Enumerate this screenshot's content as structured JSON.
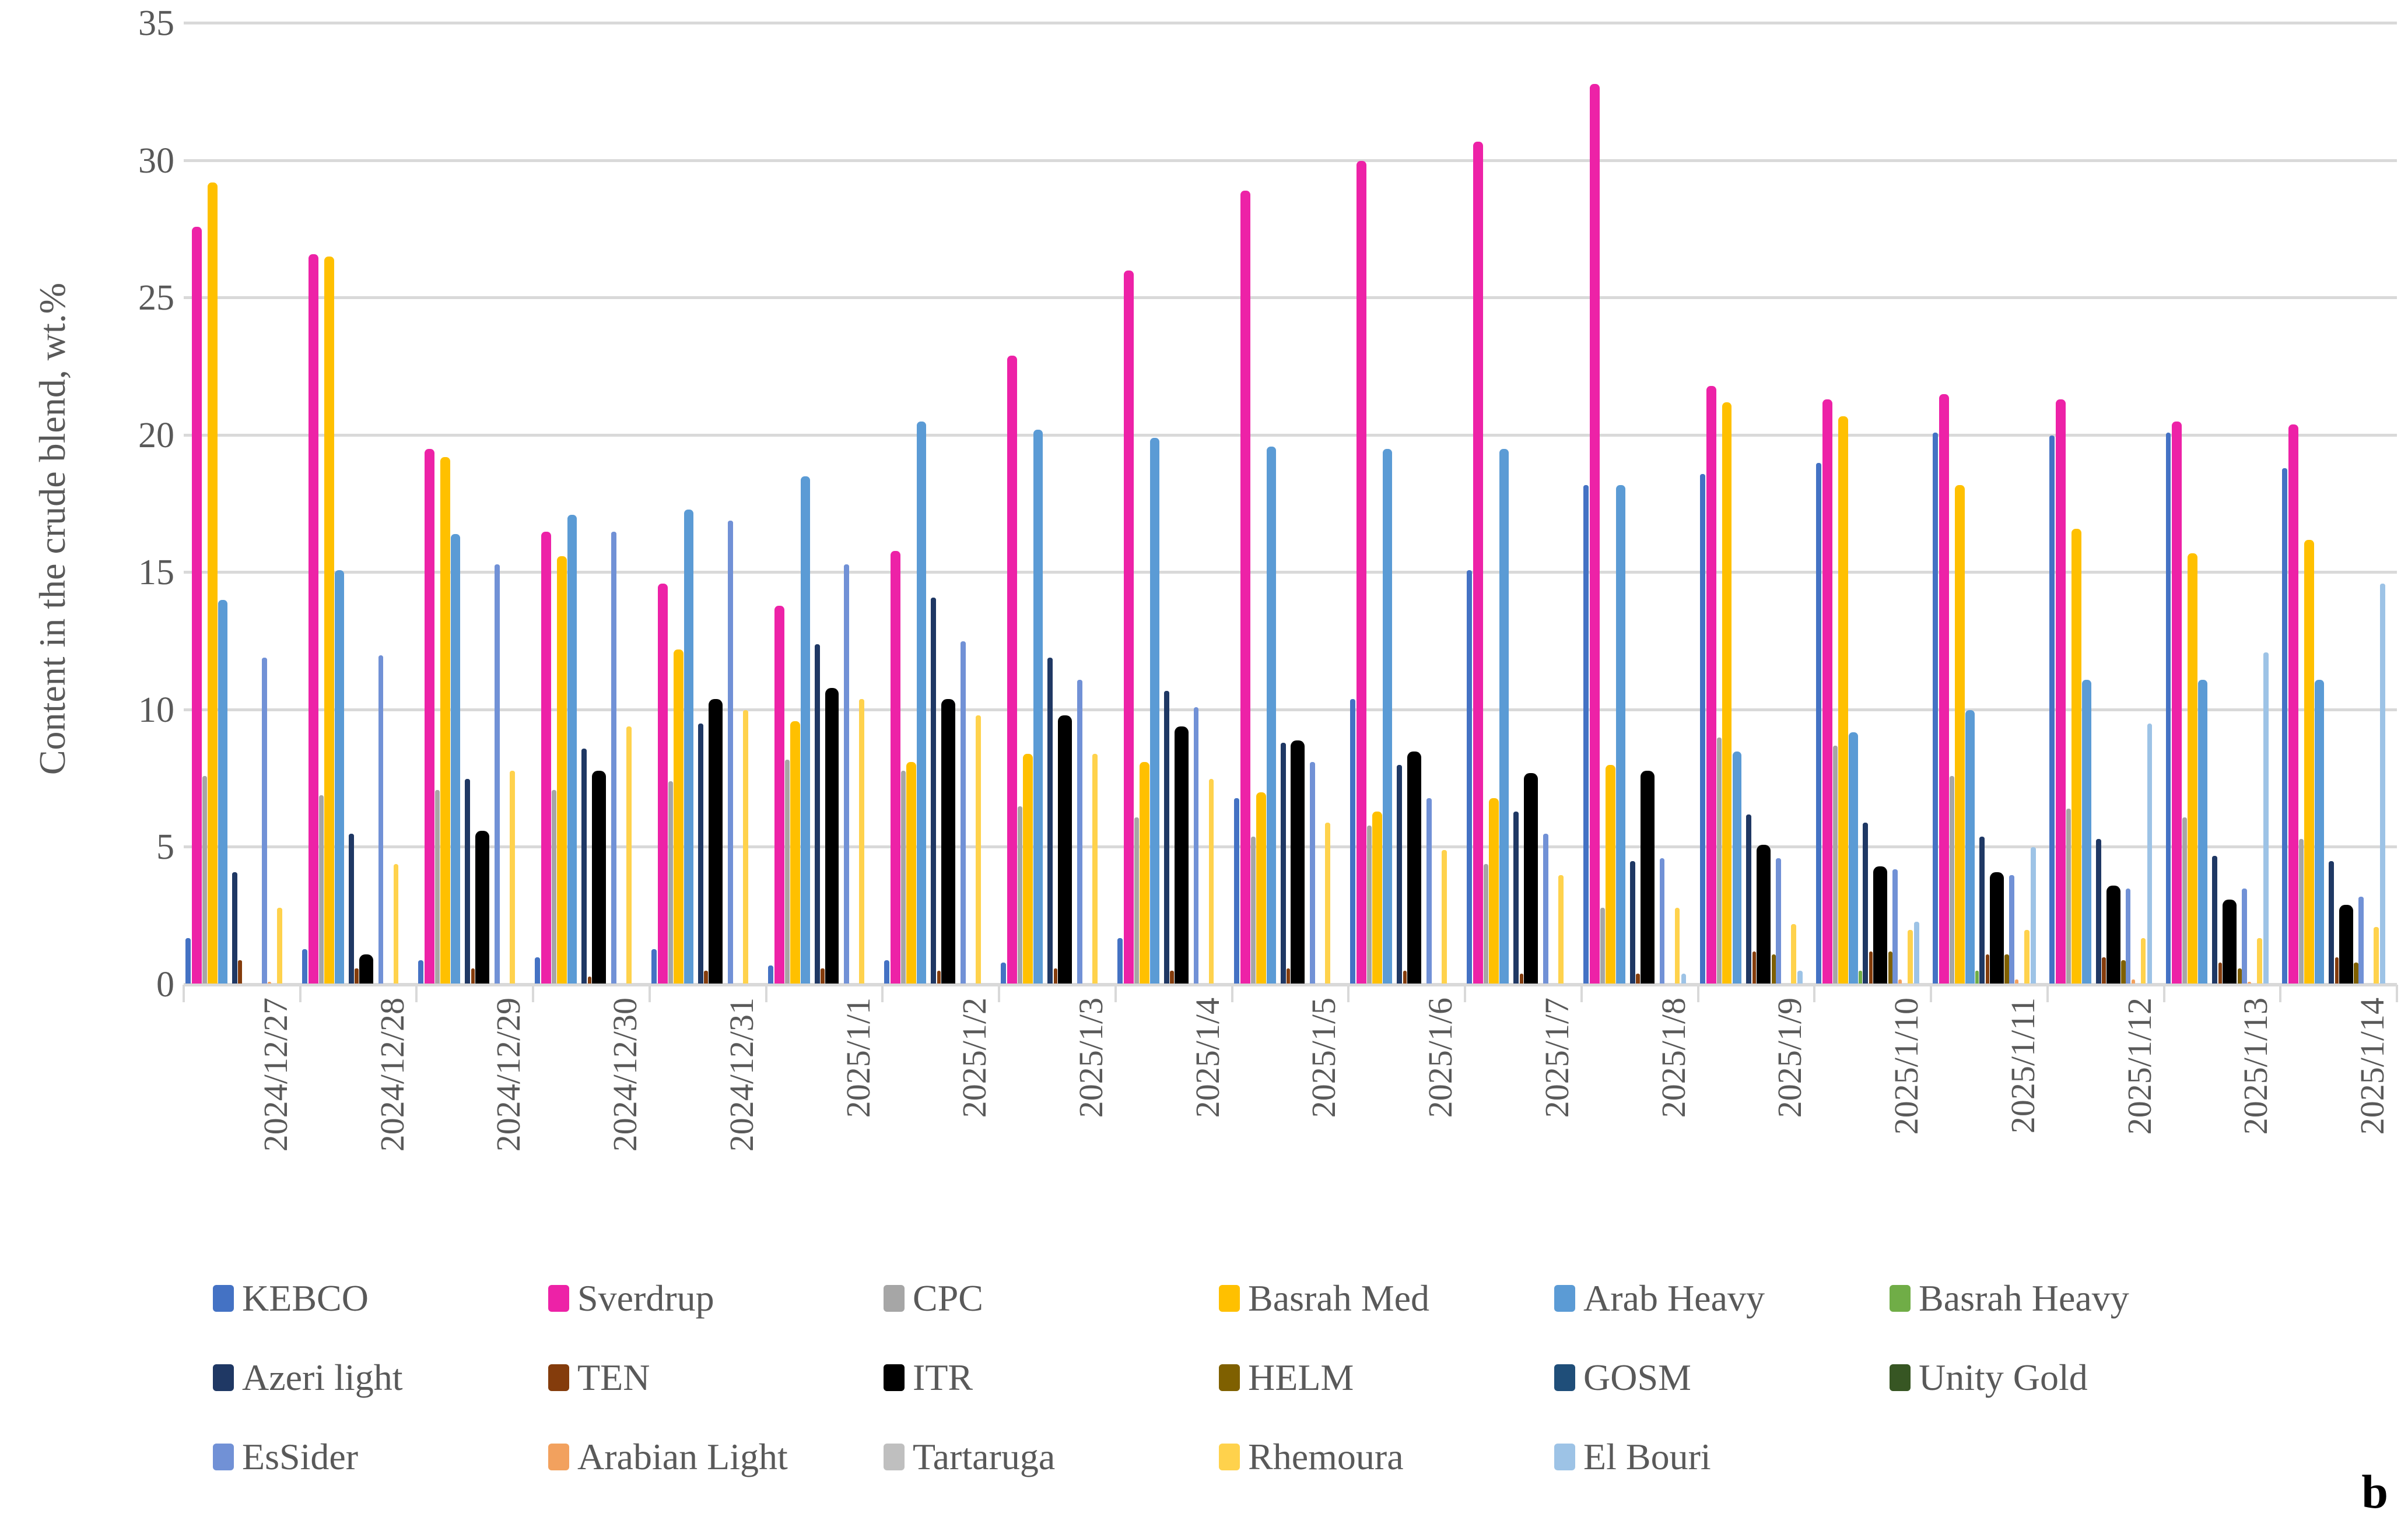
{
  "chart_data": {
    "type": "bar",
    "title": "",
    "xlabel": "",
    "ylabel": "Content in the crude blend, wt.%",
    "ylim": [
      0,
      35
    ],
    "yticks": [
      0,
      5,
      10,
      15,
      20,
      25,
      30,
      35
    ],
    "grid": "horizontal",
    "legend_position": "bottom",
    "annotation": "b",
    "categories": [
      "2024/12/27",
      "2024/12/28",
      "2024/12/29",
      "2024/12/30",
      "2024/12/31",
      "2025/1/1",
      "2025/1/2",
      "2025/1/3",
      "2025/1/4",
      "2025/1/5",
      "2025/1/6",
      "2025/1/7",
      "2025/1/8",
      "2025/1/9",
      "2025/1/10",
      "2025/1/11",
      "2025/1/12",
      "2025/1/13",
      "2025/1/14"
    ],
    "series": [
      {
        "name": "KEBCO",
        "color": "#4472C4",
        "values": [
          1.7,
          1.3,
          0.9,
          1.0,
          1.3,
          0.7,
          0.9,
          0.8,
          1.7,
          6.8,
          10.4,
          15.1,
          18.2,
          18.6,
          19.0,
          20.1,
          20.0,
          20.1,
          18.8
        ]
      },
      {
        "name": "Sverdrup",
        "color": "#ED22A7",
        "values": [
          27.6,
          26.6,
          19.5,
          16.5,
          14.6,
          13.8,
          15.8,
          22.9,
          26.0,
          28.9,
          30.0,
          30.7,
          32.8,
          21.8,
          21.3,
          21.5,
          21.3,
          20.5,
          20.4
        ]
      },
      {
        "name": "CPC",
        "color": "#A6A6A6",
        "values": [
          7.6,
          6.9,
          7.1,
          7.1,
          7.4,
          8.2,
          7.8,
          6.5,
          6.1,
          5.4,
          5.8,
          4.4,
          2.8,
          9.0,
          8.7,
          7.6,
          6.4,
          6.1,
          5.3
        ]
      },
      {
        "name": "Basrah Med",
        "color": "#FFC000",
        "values": [
          29.2,
          26.5,
          19.2,
          15.6,
          12.2,
          9.6,
          8.1,
          8.4,
          8.1,
          7.0,
          6.3,
          6.8,
          8.0,
          21.2,
          20.7,
          18.2,
          16.6,
          15.7,
          16.2
        ]
      },
      {
        "name": "Arab Heavy",
        "color": "#5B9BD5",
        "values": [
          14.0,
          15.1,
          16.4,
          17.1,
          17.3,
          18.5,
          20.5,
          20.2,
          19.9,
          19.6,
          19.5,
          19.5,
          18.2,
          8.5,
          9.2,
          10.0,
          11.1,
          11.1,
          11.1
        ]
      },
      {
        "name": "Basrah Heavy",
        "color": "#70AD47",
        "values": [
          0,
          0,
          0,
          0,
          0,
          0,
          0,
          0,
          0,
          0,
          0,
          0,
          0,
          0,
          0.5,
          0.5,
          0,
          0,
          0
        ]
      },
      {
        "name": "Azeri light",
        "color": "#1F3864",
        "values": [
          4.1,
          5.5,
          7.5,
          8.6,
          9.5,
          12.4,
          14.1,
          11.9,
          10.7,
          8.8,
          8.0,
          6.3,
          4.5,
          6.2,
          5.9,
          5.4,
          5.3,
          4.7,
          4.5
        ]
      },
      {
        "name": "TEN",
        "color": "#843C0C",
        "values": [
          0.9,
          0.6,
          0.6,
          0.3,
          0.5,
          0.6,
          0.5,
          0.6,
          0.5,
          0.6,
          0.5,
          0.4,
          0.4,
          1.2,
          1.2,
          1.1,
          1.0,
          0.8,
          1.0
        ]
      },
      {
        "name": "ITR",
        "color": "#000000",
        "values": [
          0,
          1.1,
          5.6,
          7.8,
          10.4,
          10.8,
          10.4,
          9.8,
          9.4,
          8.9,
          8.5,
          7.7,
          7.8,
          5.1,
          4.3,
          4.1,
          3.6,
          3.1,
          2.9
        ]
      },
      {
        "name": "HELM",
        "color": "#7F6000",
        "values": [
          0,
          0,
          0,
          0,
          0,
          0,
          0,
          0,
          0,
          0,
          0,
          0,
          0,
          1.1,
          1.2,
          1.1,
          0.9,
          0.6,
          0.8
        ]
      },
      {
        "name": "GOSM",
        "color": "#1F4E79",
        "values": [
          0,
          0,
          0,
          0,
          0,
          0,
          0,
          0,
          0,
          0,
          0,
          0,
          0,
          0,
          0,
          0,
          0,
          0,
          0
        ]
      },
      {
        "name": "Unity Gold",
        "color": "#375623",
        "values": [
          0,
          0,
          0,
          0,
          0,
          0,
          0,
          0,
          0,
          0,
          0,
          0,
          0,
          0,
          0,
          0,
          0,
          0,
          0
        ]
      },
      {
        "name": "EsSider",
        "color": "#7191D6",
        "values": [
          11.9,
          12.0,
          15.3,
          16.5,
          16.9,
          15.3,
          12.5,
          11.1,
          10.1,
          8.1,
          6.8,
          5.5,
          4.6,
          4.6,
          4.2,
          4.0,
          3.5,
          3.5,
          3.2
        ]
      },
      {
        "name": "Arabian Light",
        "color": "#F2A15E",
        "values": [
          0.1,
          0,
          0,
          0,
          0,
          0,
          0,
          0,
          0,
          0,
          0,
          0,
          0,
          0,
          0.2,
          0.2,
          0.2,
          0.1,
          0
        ]
      },
      {
        "name": "Tartaruga",
        "color": "#BFBFBF",
        "values": [
          0,
          0,
          0,
          0,
          0,
          0,
          0,
          0,
          0,
          0,
          0,
          0,
          0,
          0,
          0,
          0,
          0,
          0,
          0
        ]
      },
      {
        "name": "Rhemoura",
        "color": "#FFD24C",
        "values": [
          2.8,
          4.4,
          7.8,
          9.4,
          10.0,
          10.4,
          9.8,
          8.4,
          7.5,
          5.9,
          4.9,
          4.0,
          2.8,
          2.2,
          2.0,
          2.0,
          1.7,
          1.7,
          2.1
        ]
      },
      {
        "name": "El Bouri",
        "color": "#9DC3E6",
        "values": [
          0,
          0,
          0,
          0,
          0,
          0,
          0,
          0,
          0,
          0,
          0,
          0,
          0.4,
          0.5,
          2.3,
          5.0,
          9.5,
          12.1,
          14.6
        ]
      }
    ]
  }
}
